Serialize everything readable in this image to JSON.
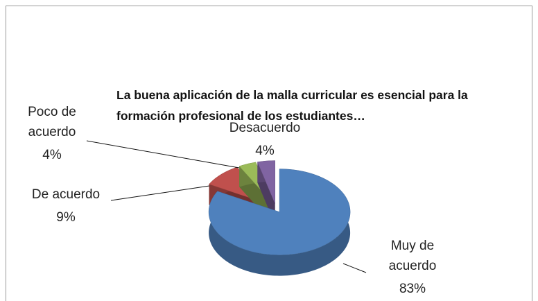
{
  "chart_data": {
    "type": "pie3d",
    "title": "La buena aplicación de la malla curricular es esencial para la formación profesional de los estudiantes…",
    "categories": [
      "Muy de acuerdo",
      "De acuerdo",
      "Poco de acuerdo",
      "Desacuerdo"
    ],
    "values": [
      83,
      9,
      4,
      4
    ],
    "value_labels": [
      "83%",
      "9%",
      "4%",
      "4%"
    ],
    "colors": [
      "#4f81bd",
      "#c0504d",
      "#9bbb59",
      "#8064a2"
    ]
  }
}
